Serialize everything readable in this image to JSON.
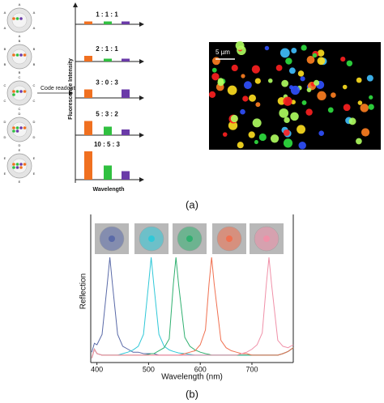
{
  "panel_labels": [
    "(a)",
    "(b)"
  ],
  "code_readout": "Code readout",
  "scale_bar": "5 µm",
  "bead_labels": [
    "A",
    "B",
    "C",
    "D",
    "E"
  ],
  "chart_data": [
    {
      "type": "barcode",
      "y_label": "Fluorescence Intensity",
      "x_label": "Wavelength",
      "colors": [
        "#f07020",
        "#30c040",
        "#6a3aa8"
      ],
      "codes": [
        {
          "label": "1 : 1 : 1",
          "values": [
            1,
            1,
            1
          ]
        },
        {
          "label": "2 : 1 : 1",
          "values": [
            2,
            1,
            1
          ]
        },
        {
          "label": "3 : 0 : 3",
          "values": [
            3,
            0,
            3
          ]
        },
        {
          "label": "5 : 3 : 2",
          "values": [
            5,
            3,
            2
          ]
        },
        {
          "label": "10 : 5 : 3",
          "values": [
            10,
            5,
            3
          ]
        }
      ]
    },
    {
      "type": "line",
      "y_label": "Reflection",
      "x_label": "Wavelength (nm)",
      "xlim": [
        388,
        780
      ],
      "xticks": [
        400,
        500,
        600,
        700
      ],
      "ylim": [
        0,
        1
      ],
      "x": [
        390,
        395,
        400,
        410,
        420,
        425,
        430,
        440,
        450,
        460,
        470,
        480,
        490,
        500,
        505,
        510,
        520,
        530,
        540,
        548,
        553,
        558,
        570,
        580,
        590,
        600,
        610,
        617,
        622,
        627,
        640,
        650,
        660,
        670,
        680,
        690,
        700,
        710,
        720,
        728,
        733,
        738,
        750,
        760,
        770,
        780
      ],
      "series": [
        {
          "color": "#5a6aa8",
          "values": [
            0.07,
            0.13,
            0.12,
            0.19,
            0.53,
            0.71,
            0.53,
            0.19,
            0.11,
            0.09,
            0.07,
            0.07,
            0.06,
            0.06,
            0.06,
            0.06,
            0.05,
            0.05,
            0.05,
            0.05,
            0.05,
            0.05,
            0.05,
            0.05,
            0.05,
            0.05,
            0.05,
            0.05,
            0.05,
            0.05,
            0.05,
            0.05,
            0.05,
            0.05,
            0.05,
            0.05,
            0.05,
            0.05,
            0.05,
            0.05,
            0.05,
            0.05,
            0.05,
            0.06,
            0.075,
            0.1
          ]
        },
        {
          "color": "#30c8d8",
          "values": [
            0.03,
            0.09,
            0.06,
            0.05,
            0.05,
            0.05,
            0.05,
            0.05,
            0.06,
            0.07,
            0.085,
            0.11,
            0.19,
            0.53,
            0.71,
            0.53,
            0.19,
            0.11,
            0.085,
            0.075,
            0.07,
            0.065,
            0.06,
            0.055,
            0.05,
            0.05,
            0.05,
            0.05,
            0.05,
            0.05,
            0.05,
            0.05,
            0.05,
            0.05,
            0.05,
            0.05,
            0.05,
            0.05,
            0.05,
            0.05,
            0.05,
            0.05,
            0.05,
            0.06,
            0.075,
            0.1
          ]
        },
        {
          "color": "#30b070",
          "values": [
            0.03,
            0.09,
            0.06,
            0.05,
            0.05,
            0.05,
            0.05,
            0.05,
            0.05,
            0.05,
            0.05,
            0.05,
            0.05,
            0.055,
            0.06,
            0.06,
            0.08,
            0.1,
            0.16,
            0.53,
            0.71,
            0.53,
            0.17,
            0.11,
            0.085,
            0.07,
            0.06,
            0.055,
            0.05,
            0.05,
            0.05,
            0.05,
            0.05,
            0.05,
            0.05,
            0.05,
            0.05,
            0.05,
            0.05,
            0.05,
            0.05,
            0.05,
            0.05,
            0.06,
            0.075,
            0.1
          ]
        },
        {
          "color": "#f07050",
          "values": [
            0.03,
            0.09,
            0.06,
            0.05,
            0.05,
            0.05,
            0.05,
            0.05,
            0.05,
            0.05,
            0.05,
            0.05,
            0.05,
            0.05,
            0.05,
            0.05,
            0.05,
            0.05,
            0.05,
            0.05,
            0.05,
            0.05,
            0.06,
            0.07,
            0.08,
            0.12,
            0.22,
            0.53,
            0.71,
            0.53,
            0.15,
            0.1,
            0.08,
            0.07,
            0.06,
            0.06,
            0.05,
            0.05,
            0.05,
            0.05,
            0.05,
            0.05,
            0.05,
            0.06,
            0.075,
            0.1
          ]
        },
        {
          "color": "#f090a8",
          "values": [
            0.03,
            0.09,
            0.06,
            0.05,
            0.05,
            0.05,
            0.05,
            0.05,
            0.05,
            0.05,
            0.05,
            0.05,
            0.05,
            0.05,
            0.05,
            0.05,
            0.05,
            0.05,
            0.05,
            0.05,
            0.05,
            0.05,
            0.05,
            0.05,
            0.05,
            0.05,
            0.05,
            0.05,
            0.05,
            0.05,
            0.05,
            0.05,
            0.05,
            0.05,
            0.06,
            0.07,
            0.09,
            0.12,
            0.2,
            0.53,
            0.71,
            0.53,
            0.15,
            0.11,
            0.1,
            0.12
          ]
        }
      ]
    }
  ]
}
